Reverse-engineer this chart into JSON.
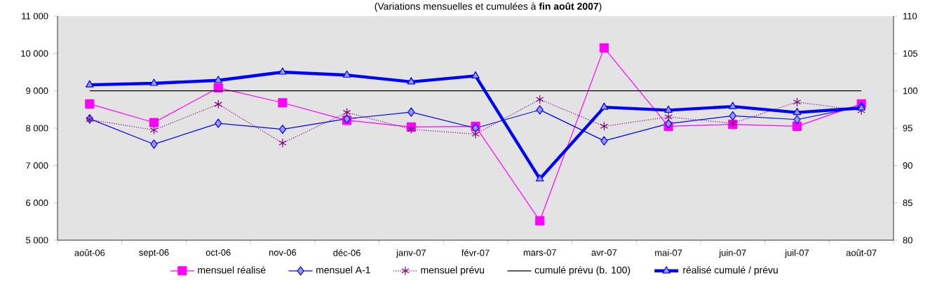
{
  "chart_data": {
    "type": "line",
    "subtitle": "(Variations mensuelles et cumulées à **fin août 2007**)",
    "categories": [
      "août-06",
      "sept-06",
      "oct-06",
      "nov-06",
      "déc-06",
      "janv-07",
      "févr-07",
      "mars-07",
      "avr-07",
      "mai-07",
      "juin-07",
      "juil-07",
      "août-07"
    ],
    "series": [
      {
        "name": "mensuel réalisé",
        "color": "#ff00ff",
        "marker": "square",
        "line_style": "solid",
        "values": [
          8650,
          8150,
          9080,
          8680,
          8210,
          8030,
          8050,
          5520,
          10150,
          8050,
          8100,
          8050,
          8650
        ]
      },
      {
        "name": "mensuel A-1",
        "color": "#0000ff",
        "marker": "diamond",
        "line_style": "solid",
        "values": [
          8250,
          7570,
          8130,
          7970,
          8250,
          8430,
          8000,
          8490,
          7660,
          8120,
          8330,
          8230,
          8580
        ]
      },
      {
        "name": "mensuel prévu",
        "color": "#800080",
        "marker": "cross",
        "line_style": "dotted",
        "values": [
          8230,
          7950,
          8640,
          7600,
          8420,
          7970,
          7840,
          8770,
          8050,
          8300,
          8130,
          8700,
          8470
        ]
      },
      {
        "name": "cumulé prévu (b. 100)",
        "color": "#000000",
        "marker": "none",
        "line_style": "solid",
        "axis": "y2",
        "values": [
          100,
          100,
          100,
          100,
          100,
          100,
          100,
          100,
          100,
          100,
          100,
          100,
          100
        ]
      },
      {
        "name": "réalisé cumulé / prévu",
        "color": "#0000ff",
        "marker": "triangle",
        "line_style": "solid",
        "axis": "y2",
        "values": [
          100.8,
          101.0,
          101.4,
          102.5,
          102.1,
          101.2,
          102.0,
          88.2,
          97.8,
          97.4,
          97.9,
          97.1,
          97.7
        ]
      }
    ],
    "ylim": [
      5000,
      11000
    ],
    "yticks": [
      {
        "value": 5000,
        "label": "5 000"
      },
      {
        "value": 6000,
        "label": "6 000"
      },
      {
        "value": 7000,
        "label": "7 000"
      },
      {
        "value": 8000,
        "label": "8 000"
      },
      {
        "value": 9000,
        "label": "9 000"
      },
      {
        "value": 10000,
        "label": "10 000"
      },
      {
        "value": 11000,
        "label": "11 000"
      }
    ],
    "y2lim": [
      80,
      110
    ],
    "y2ticks": [
      80,
      85,
      90,
      95,
      100,
      105,
      110
    ],
    "grid": false,
    "legend": "bottom"
  }
}
